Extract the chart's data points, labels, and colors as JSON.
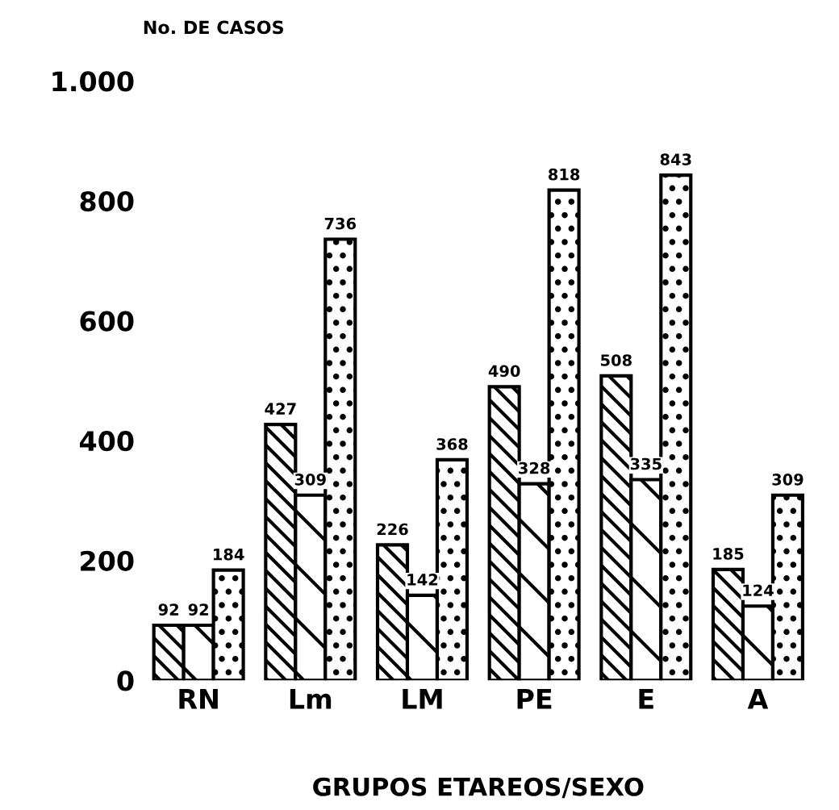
{
  "chart_data": {
    "type": "bar",
    "ylabel": "No. DE CASOS",
    "xlabel": "GRUPOS ETAREOS/SEXO",
    "categories": [
      "RN",
      "Lm",
      "LM",
      "PE",
      "E",
      "A"
    ],
    "series": [
      {
        "color": "#000000",
        "values": [
          92,
          427,
          226,
          490,
          508,
          185
        ]
      },
      {
        "color": "#000000",
        "values": [
          92,
          309,
          142,
          328,
          335,
          124
        ]
      },
      {
        "color": "#000000",
        "values": [
          184,
          736,
          368,
          818,
          843,
          309
        ]
      }
    ],
    "ylim": [
      0,
      1000
    ],
    "yticks": [
      0,
      200,
      400,
      600,
      800,
      {
        "value": 1000,
        "label": "1.000"
      }
    ],
    "data_labels": true,
    "grid": false,
    "legend": false
  }
}
